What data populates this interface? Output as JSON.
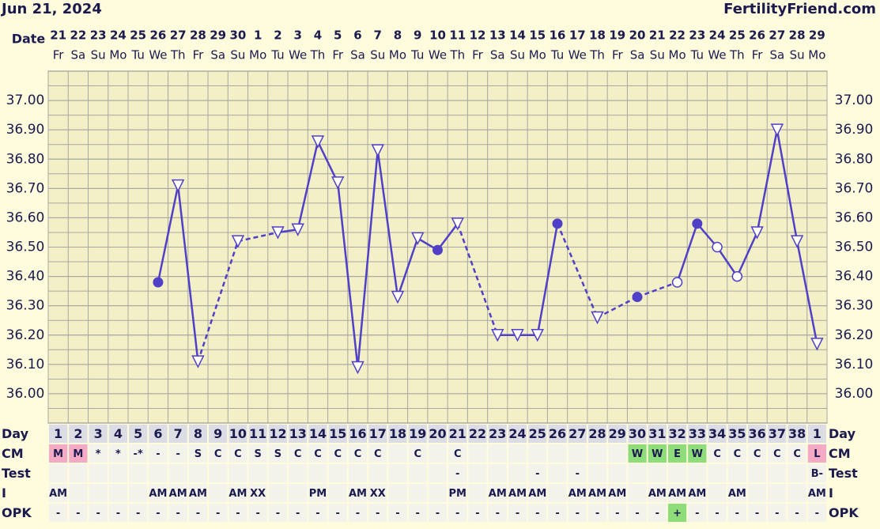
{
  "chart_data": {
    "type": "line",
    "title": "Jun 21, 2024",
    "source": "FertilityFriend.com",
    "date_label": "Date",
    "x": [
      "21",
      "22",
      "23",
      "24",
      "25",
      "26",
      "27",
      "28",
      "29",
      "30",
      "1",
      "2",
      "3",
      "4",
      "5",
      "6",
      "7",
      "8",
      "9",
      "10",
      "11",
      "12",
      "13",
      "14",
      "15",
      "16",
      "17",
      "18",
      "19",
      "20",
      "21",
      "22",
      "23",
      "24",
      "25",
      "26",
      "27",
      "28",
      "29"
    ],
    "weekdays": [
      "Fr",
      "Sa",
      "Su",
      "Mo",
      "Tu",
      "We",
      "Th",
      "Fr",
      "Sa",
      "Su",
      "Mo",
      "Tu",
      "We",
      "Th",
      "Fr",
      "Sa",
      "Su",
      "Mo",
      "Tu",
      "We",
      "Th",
      "Fr",
      "Sa",
      "Su",
      "Mo",
      "Tu",
      "We",
      "Th",
      "Fr",
      "Sa",
      "Su",
      "Mo",
      "Tu",
      "We",
      "Th",
      "Fr",
      "Sa",
      "Su",
      "Mo"
    ],
    "ylim": [
      35.9,
      37.1
    ],
    "yticks": [
      {
        "value": 36.0,
        "label": "36.00"
      },
      {
        "value": 36.1,
        "label": "36.10"
      },
      {
        "value": 36.2,
        "label": "36.20"
      },
      {
        "value": 36.3,
        "label": "36.30"
      },
      {
        "value": 36.4,
        "label": "36.40"
      },
      {
        "value": 36.5,
        "label": "36.50"
      },
      {
        "value": 36.6,
        "label": "36.60"
      },
      {
        "value": 36.7,
        "label": "36.70"
      },
      {
        "value": 36.8,
        "label": "36.80"
      },
      {
        "value": 36.9,
        "label": "36.90"
      },
      {
        "value": 37.0,
        "label": "37.00"
      }
    ],
    "grid": true,
    "series": [
      {
        "color": "#5040c8",
        "values": [
          null,
          null,
          null,
          null,
          null,
          36.38,
          36.71,
          36.11,
          null,
          36.52,
          null,
          36.55,
          36.56,
          36.86,
          36.72,
          36.09,
          36.83,
          36.33,
          36.53,
          36.49,
          36.58,
          null,
          36.2,
          36.2,
          36.2,
          36.58,
          null,
          36.26,
          null,
          36.33,
          null,
          36.38,
          36.58,
          36.5,
          36.4,
          36.55,
          36.9,
          36.52,
          36.17
        ],
        "markers": [
          null,
          null,
          null,
          null,
          null,
          "circle",
          "triangle",
          "triangle",
          null,
          "triangle",
          null,
          "triangle",
          "triangle",
          "triangle",
          "triangle",
          "triangle",
          "triangle",
          "triangle",
          "triangle",
          "circle",
          "triangle",
          null,
          "triangle",
          "triangle",
          "triangle",
          "circle",
          null,
          "triangle",
          null,
          "circle",
          null,
          "open-circle",
          "circle",
          "open-circle",
          "open-circle",
          "triangle",
          "triangle",
          "triangle",
          "triangle"
        ]
      }
    ]
  },
  "table": {
    "rows": [
      {
        "label": "Day",
        "cells": [
          1,
          2,
          3,
          4,
          5,
          6,
          7,
          8,
          9,
          10,
          11,
          12,
          13,
          14,
          15,
          16,
          17,
          18,
          19,
          20,
          21,
          22,
          23,
          24,
          25,
          26,
          27,
          28,
          29,
          30,
          31,
          32,
          33,
          34,
          35,
          36,
          37,
          38,
          1
        ]
      },
      {
        "label": "CM",
        "cells": [
          "M",
          "M",
          "*",
          "*",
          "-*",
          "-",
          "-",
          "S",
          "C",
          "C",
          "S",
          "S",
          "C",
          "C",
          "C",
          "C",
          "C",
          null,
          "C",
          null,
          "C",
          null,
          null,
          null,
          null,
          null,
          null,
          null,
          null,
          "W",
          "W",
          "E",
          "W",
          "C",
          "C",
          "C",
          "C",
          "C",
          "L"
        ],
        "cell_colors": [
          "#f4a9c4",
          "#f4a9c4",
          null,
          null,
          null,
          null,
          null,
          null,
          null,
          null,
          null,
          null,
          null,
          null,
          null,
          null,
          null,
          null,
          null,
          null,
          null,
          null,
          null,
          null,
          null,
          null,
          null,
          null,
          null,
          "#8fdc7a",
          "#8fdc7a",
          "#8fdc7a",
          "#8fdc7a",
          null,
          null,
          null,
          null,
          null,
          "#f4a9c4"
        ]
      },
      {
        "label": "Test",
        "cells": [
          null,
          null,
          null,
          null,
          null,
          null,
          null,
          null,
          null,
          null,
          null,
          null,
          null,
          null,
          null,
          null,
          null,
          null,
          null,
          null,
          "-",
          null,
          null,
          null,
          "-",
          null,
          "-",
          null,
          null,
          null,
          null,
          null,
          null,
          null,
          null,
          null,
          null,
          null,
          "B-"
        ]
      },
      {
        "label": "I",
        "cells": [
          "AM",
          null,
          null,
          null,
          null,
          "AM",
          "AM",
          "AM",
          null,
          "AM",
          "XX",
          null,
          null,
          "PM",
          null,
          "AM",
          "XX",
          null,
          null,
          null,
          "PM",
          null,
          "AM",
          "AM",
          "AM",
          null,
          "AM",
          "AM",
          "AM",
          null,
          "AM",
          "AM",
          "AM",
          null,
          "AM",
          null,
          null,
          null,
          "AM"
        ]
      },
      {
        "label": "OPK",
        "cells": [
          "-",
          "-",
          "-",
          "-",
          "-",
          "-",
          "-",
          "-",
          "-",
          "-",
          "-",
          "-",
          "-",
          "-",
          "-",
          "-",
          "-",
          "-",
          "-",
          "-",
          "-",
          "-",
          "-",
          "-",
          "-",
          "-",
          "-",
          "-",
          "-",
          "-",
          "-",
          "+",
          "-",
          "-",
          "-",
          "-",
          "-",
          "-",
          "-"
        ],
        "cell_colors": [
          null,
          null,
          null,
          null,
          null,
          null,
          null,
          null,
          null,
          null,
          null,
          null,
          null,
          null,
          null,
          null,
          null,
          null,
          null,
          null,
          null,
          null,
          null,
          null,
          null,
          null,
          null,
          null,
          null,
          null,
          null,
          "#8fdc7a",
          null,
          null,
          null,
          null,
          null,
          null,
          null
        ]
      }
    ]
  }
}
